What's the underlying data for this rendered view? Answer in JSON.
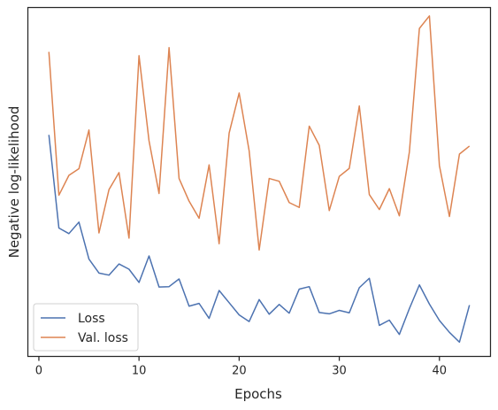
{
  "chart_data": {
    "type": "line",
    "title": "",
    "xlabel": "Epochs",
    "ylabel": "Negative log-likelihood",
    "xlim": [
      -1.1,
      45.1
    ],
    "ylim": [
      0.0,
      1.0
    ],
    "xticks": [
      0,
      10,
      20,
      30,
      40
    ],
    "yticks": [],
    "grid": false,
    "legend_position": "lower-left",
    "series": [
      {
        "name": "Loss",
        "color": "#4c72b0",
        "x": [
          1,
          2,
          3,
          4,
          5,
          6,
          7,
          8,
          9,
          10,
          11,
          12,
          13,
          14,
          15,
          16,
          17,
          18,
          19,
          20,
          21,
          22,
          23,
          24,
          25,
          26,
          27,
          28,
          29,
          30,
          31,
          32,
          33,
          34,
          35,
          36,
          37,
          38,
          39,
          40,
          41,
          42,
          43
        ],
        "y": [
          0.635,
          0.368,
          0.352,
          0.385,
          0.279,
          0.239,
          0.233,
          0.265,
          0.25,
          0.212,
          0.288,
          0.199,
          0.2,
          0.222,
          0.144,
          0.152,
          0.109,
          0.189,
          0.154,
          0.119,
          0.1,
          0.163,
          0.121,
          0.149,
          0.124,
          0.193,
          0.2,
          0.126,
          0.122,
          0.132,
          0.125,
          0.197,
          0.224,
          0.089,
          0.104,
          0.063,
          0.137,
          0.205,
          0.15,
          0.103,
          0.069,
          0.041,
          0.147
        ]
      },
      {
        "name": "Val. loss",
        "color": "#dd8452",
        "x": [
          1,
          2,
          3,
          4,
          5,
          6,
          7,
          8,
          9,
          10,
          11,
          12,
          13,
          14,
          15,
          16,
          17,
          18,
          19,
          20,
          21,
          22,
          23,
          24,
          25,
          26,
          27,
          28,
          29,
          30,
          31,
          32,
          33,
          34,
          35,
          36,
          37,
          38,
          39,
          40,
          41,
          42,
          43
        ],
        "y": [
          0.873,
          0.462,
          0.519,
          0.538,
          0.649,
          0.354,
          0.478,
          0.527,
          0.339,
          0.862,
          0.618,
          0.467,
          0.885,
          0.51,
          0.445,
          0.396,
          0.549,
          0.323,
          0.64,
          0.755,
          0.589,
          0.305,
          0.51,
          0.502,
          0.441,
          0.427,
          0.66,
          0.605,
          0.418,
          0.516,
          0.539,
          0.718,
          0.464,
          0.421,
          0.481,
          0.403,
          0.586,
          0.94,
          0.976,
          0.547,
          0.401,
          0.58,
          0.603
        ]
      }
    ]
  }
}
